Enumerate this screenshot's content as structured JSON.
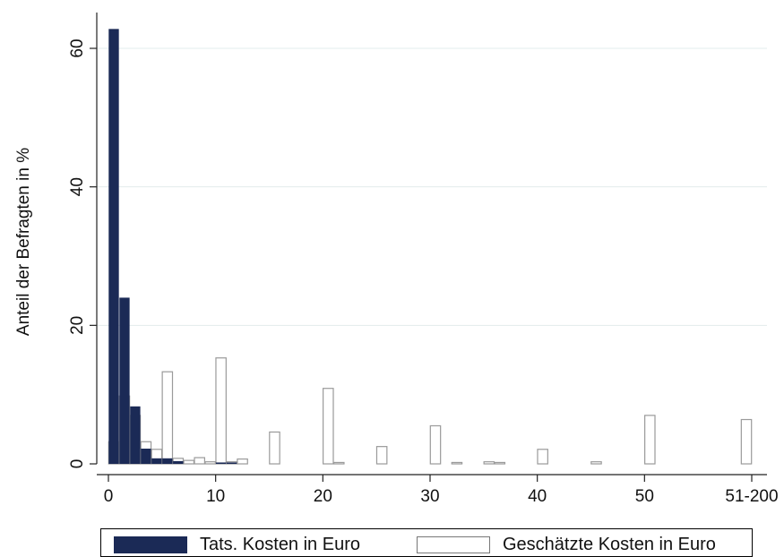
{
  "chart_data": {
    "type": "bar",
    "title": "",
    "xlabel": "",
    "ylabel": "Anteil der Befragten in %",
    "xlim": [
      -1,
      61
    ],
    "ylim": [
      0,
      64
    ],
    "x_ticks": [
      0,
      10,
      20,
      30,
      40,
      50,
      60
    ],
    "x_tick_labels": [
      "0",
      "10",
      "20",
      "30",
      "40",
      "50",
      "51-200"
    ],
    "y_ticks": [
      0,
      20,
      40,
      60
    ],
    "y_tick_labels": [
      "0",
      "20",
      "40",
      "60"
    ],
    "grid": true,
    "legend_position": "bottom",
    "series": [
      {
        "name": "Tats. Kosten in Euro",
        "color": "#1b2a56",
        "fill": "solid",
        "x": [
          0.5,
          1.5,
          2.5,
          3.5,
          4.5,
          5.5,
          6.5,
          10.5,
          11.5
        ],
        "values": [
          62.8,
          24.0,
          8.3,
          2.2,
          0.8,
          0.8,
          0.4,
          0.2,
          0.2
        ]
      },
      {
        "name": "Geschätzte Kosten in Euro",
        "color": "#ffffff",
        "fill": "outline",
        "x": [
          0.5,
          1.5,
          2.5,
          3.5,
          4.5,
          5.5,
          6.5,
          7.5,
          8.5,
          9.5,
          10.5,
          11.5,
          12.5,
          15.5,
          20.5,
          21.5,
          25.5,
          30.5,
          32.5,
          35.5,
          36.5,
          40.5,
          45.5,
          50.5,
          59.5
        ],
        "values": [
          3.2,
          9.8,
          7.0,
          3.2,
          2.1,
          13.3,
          0.8,
          0.5,
          0.9,
          0.3,
          15.3,
          0.3,
          0.7,
          4.6,
          10.9,
          0.2,
          2.5,
          5.5,
          0.2,
          0.3,
          0.2,
          2.1,
          0.3,
          7.0,
          6.4
        ]
      }
    ]
  }
}
